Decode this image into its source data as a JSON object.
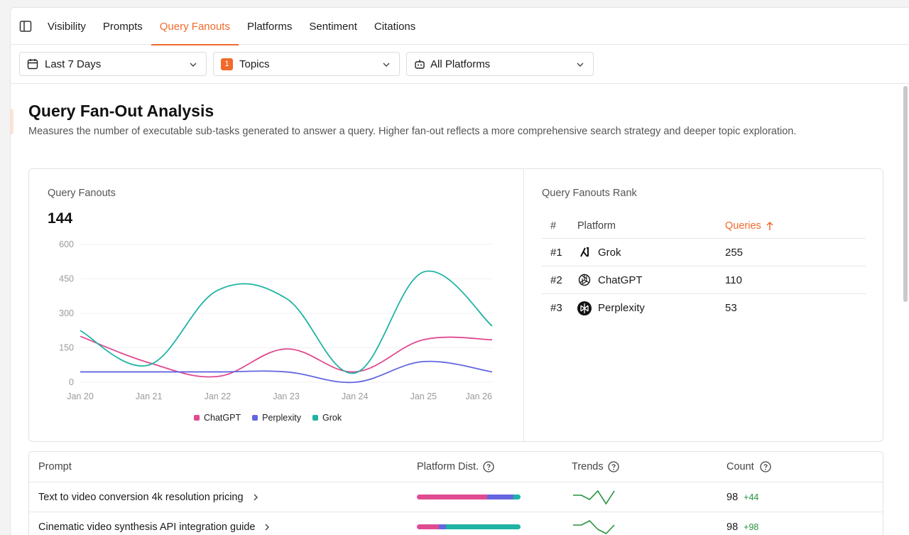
{
  "nav": {
    "tabs": [
      "Visibility",
      "Prompts",
      "Query Fanouts",
      "Platforms",
      "Sentiment",
      "Citations"
    ],
    "active_tab": "Query Fanouts"
  },
  "filters": {
    "date_range": "Last 7 Days",
    "topics_count": "1",
    "topics_label": "Topics",
    "platforms": "All Platforms"
  },
  "header": {
    "title": "Query Fan-Out Analysis",
    "subtitle": "Measures the number of executable sub-tasks generated to answer a query. Higher fan-out reflects a more comprehensive search strategy and deeper topic exploration."
  },
  "fanouts_card": {
    "label": "Query Fanouts",
    "total": "144"
  },
  "rank_card": {
    "label": "Query Fanouts Rank",
    "columns": [
      "#",
      "Platform",
      "Queries"
    ],
    "rows": [
      {
        "rank": "#1",
        "platform": "Grok",
        "queries": "255",
        "icon": "grok-logo-icon"
      },
      {
        "rank": "#2",
        "platform": "ChatGPT",
        "queries": "110",
        "icon": "chatgpt-logo-icon"
      },
      {
        "rank": "#3",
        "platform": "Perplexity",
        "queries": "53",
        "icon": "perplexity-logo-icon"
      }
    ]
  },
  "colors": {
    "accent": "#f06a2b",
    "chatgpt": "#e04a91",
    "perplexity": "#6466e0",
    "grok": "#1fb3a3",
    "positive": "#23923d"
  },
  "chart_data": {
    "type": "line",
    "x": [
      "Jan 20",
      "Jan 21",
      "Jan 22",
      "Jan 23",
      "Jan 24",
      "Jan 25",
      "Jan 26"
    ],
    "yticks": [
      0,
      150,
      300,
      450,
      600
    ],
    "ylim": [
      0,
      600
    ],
    "grid": true,
    "legend": "bottom",
    "series": [
      {
        "name": "ChatGPT",
        "values": [
          200,
          85,
          25,
          145,
          45,
          185,
          185
        ]
      },
      {
        "name": "Perplexity",
        "values": [
          45,
          45,
          45,
          45,
          0,
          90,
          45
        ]
      },
      {
        "name": "Grok",
        "values": [
          225,
          75,
          400,
          365,
          40,
          480,
          245
        ]
      }
    ]
  },
  "prompts_table": {
    "columns": [
      "Prompt",
      "Platform Dist.",
      "Trends",
      "Count"
    ],
    "rows": [
      {
        "prompt": "Text to video conversion 4k resolution pricing",
        "dist": [
          0.68,
          0.25,
          0.07
        ],
        "trend": [
          2,
          2,
          1,
          3,
          0,
          3
        ],
        "count": "98",
        "delta": "+44"
      },
      {
        "prompt": "Cinematic video synthesis API integration guide",
        "dist": [
          0.21,
          0.07,
          0.72
        ],
        "trend": [
          2,
          2,
          3,
          1,
          0,
          2
        ],
        "count": "98",
        "delta": "+98"
      }
    ]
  }
}
